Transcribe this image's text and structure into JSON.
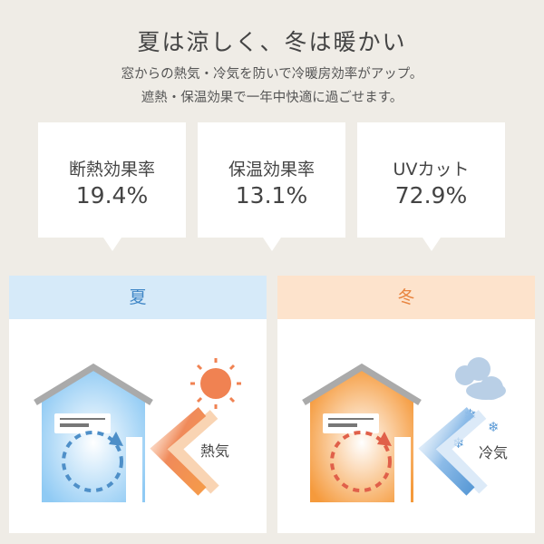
{
  "header": {
    "title": "夏は涼しく、冬は暖かい",
    "line1": "窓からの熱気・冷気を防いで冷暖房効率がアップ。",
    "line2": "遮熱・保温効果で一年中快適に過ごせます。"
  },
  "stats": [
    {
      "label": "断熱効果率",
      "value": "19.4%"
    },
    {
      "label": "保温効果率",
      "value": "13.1%"
    },
    {
      "label": "UVカット",
      "value": "72.9%"
    }
  ],
  "panels": {
    "summer": {
      "title": "夏",
      "label": "熱気",
      "header_color": "#d6eaf9",
      "title_color": "#3f86c6"
    },
    "winter": {
      "title": "冬",
      "label": "冷気",
      "header_color": "#fde3cc",
      "title_color": "#e8843f"
    }
  }
}
